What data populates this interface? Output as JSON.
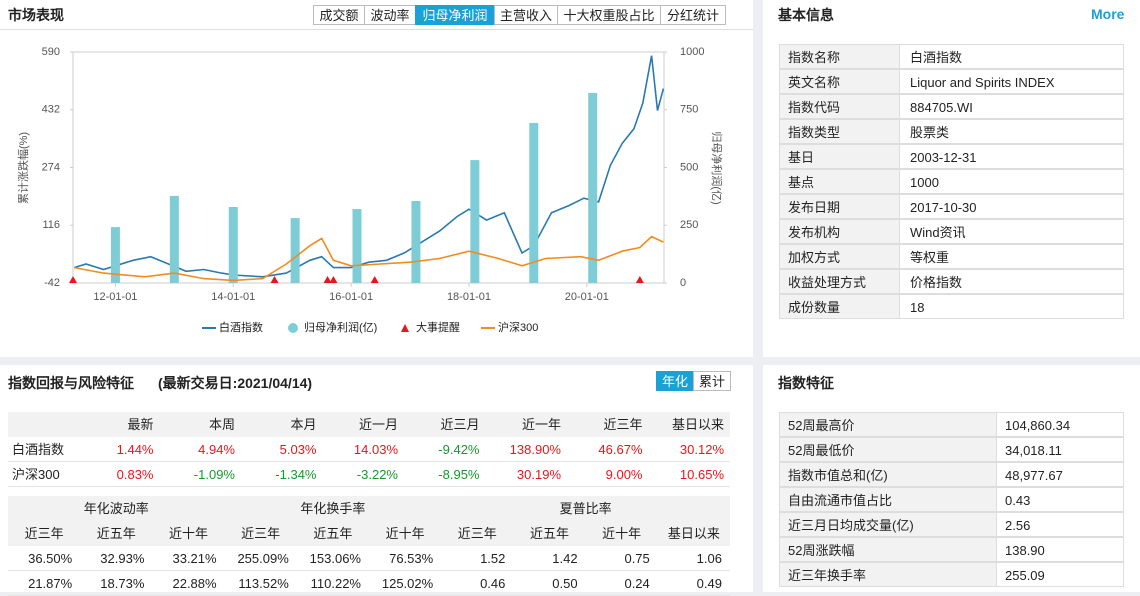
{
  "market": {
    "title": "市场表现",
    "tabs": [
      "成交额",
      "波动率",
      "归母净利润",
      "主营收入",
      "十大权重股占比",
      "分红统计"
    ],
    "active_tab": 2
  },
  "chart_data": {
    "type": "combo",
    "ylabel": "累计涨跌幅(%)",
    "y2label": "归母净利润(亿)",
    "xlim": [
      2011.28,
      2021.31
    ],
    "xticks": [
      {
        "value": 2012,
        "label": "12-01-01"
      },
      {
        "value": 2014,
        "label": "14-01-01"
      },
      {
        "value": 2016,
        "label": "16-01-01"
      },
      {
        "value": 2018,
        "label": "18-01-01"
      },
      {
        "value": 2020,
        "label": "20-01-01"
      }
    ],
    "ylim": [
      -42,
      590
    ],
    "yticks": [
      -42,
      116,
      274,
      432,
      590
    ],
    "y2lim": [
      0,
      1000
    ],
    "y2ticks": [
      0,
      250,
      500,
      750,
      1000
    ],
    "series": [
      {
        "name": "白酒指数",
        "type": "line",
        "color": "#2a7ab0",
        "x": [
          2011.3,
          2011.5,
          2011.8,
          2012.0,
          2012.3,
          2012.6,
          2012.9,
          2013.2,
          2013.5,
          2013.8,
          2014.0,
          2014.5,
          2014.9,
          2015.3,
          2015.5,
          2015.7,
          2016.0,
          2016.3,
          2016.6,
          2016.9,
          2017.2,
          2017.5,
          2017.8,
          2018.0,
          2018.3,
          2018.6,
          2018.9,
          2019.1,
          2019.4,
          2019.7,
          2019.95,
          2020.2,
          2020.4,
          2020.6,
          2020.8,
          2020.95,
          2021.1,
          2021.2,
          2021.3
        ],
        "values": [
          0,
          10,
          -5,
          5,
          20,
          30,
          10,
          -10,
          -5,
          -15,
          -20,
          -25,
          -15,
          20,
          30,
          0,
          0,
          15,
          20,
          40,
          70,
          100,
          140,
          160,
          130,
          150,
          40,
          60,
          150,
          170,
          190,
          180,
          280,
          340,
          380,
          450,
          580,
          430,
          490
        ]
      },
      {
        "name": "归母净利润(亿)",
        "type": "bar",
        "axis": "y2",
        "color": "#7ecdd6",
        "x": [
          2012.0,
          2013.0,
          2014.0,
          2015.05,
          2016.1,
          2017.1,
          2018.1,
          2019.1,
          2020.1
        ],
        "values": [
          242,
          377,
          329,
          281,
          320,
          355,
          532,
          693,
          823
        ]
      },
      {
        "name": "大事提醒",
        "type": "event",
        "color": "#e8161c",
        "x": [
          2011.28,
          2014.7,
          2015.6,
          2015.7,
          2016.4,
          2020.9
        ]
      },
      {
        "name": "沪深300",
        "type": "line",
        "color": "#f28c1e",
        "x": [
          2011.3,
          2011.8,
          2012.5,
          2013.0,
          2013.5,
          2014.0,
          2014.5,
          2014.9,
          2015.3,
          2015.5,
          2015.7,
          2016.0,
          2016.5,
          2017.0,
          2017.5,
          2018.0,
          2018.5,
          2018.9,
          2019.3,
          2019.9,
          2020.2,
          2020.6,
          2020.9,
          2021.1,
          2021.3
        ],
        "values": [
          0,
          -15,
          -25,
          -15,
          -30,
          -35,
          -30,
          10,
          60,
          80,
          20,
          5,
          10,
          15,
          25,
          45,
          25,
          5,
          25,
          30,
          20,
          45,
          55,
          85,
          70
        ]
      }
    ]
  },
  "basic": {
    "title": "基本信息",
    "more": "More",
    "rows": [
      [
        "指数名称",
        "白酒指数"
      ],
      [
        "英文名称",
        "Liquor and Spirits INDEX"
      ],
      [
        "指数代码",
        "884705.WI"
      ],
      [
        "指数类型",
        "股票类"
      ],
      [
        "基日",
        "2003-12-31"
      ],
      [
        "基点",
        "1000"
      ],
      [
        "发布日期",
        "2017-10-30"
      ],
      [
        "发布机构",
        "Wind资讯"
      ],
      [
        "加权方式",
        "等权重"
      ],
      [
        "收益处理方式",
        "价格指数"
      ],
      [
        "成份数量",
        "18"
      ]
    ]
  },
  "returns": {
    "title": "指数回报与风险特征",
    "date": "(最新交易日:2021/04/14)",
    "toggles": [
      "年化",
      "累计"
    ],
    "active_toggle": 0,
    "header": [
      "最新",
      "本周",
      "本月",
      "近一月",
      "近三月",
      "近一年",
      "近三年",
      "基日以来"
    ],
    "rows": [
      [
        "白酒指数",
        "1.44%",
        "4.94%",
        "5.03%",
        "14.03%",
        "-9.42%",
        "138.90%",
        "46.67%",
        "30.12%"
      ],
      [
        "沪深300",
        "0.83%",
        "-1.09%",
        "-1.34%",
        "-3.22%",
        "-8.95%",
        "30.19%",
        "9.00%",
        "10.65%"
      ]
    ],
    "groups": [
      [
        "年化波动率",
        3
      ],
      [
        "年化换手率",
        3
      ],
      [
        "夏普比率",
        4
      ]
    ],
    "subheader": [
      "近三年",
      "近五年",
      "近十年",
      "近三年",
      "近五年",
      "近十年",
      "近三年",
      "近五年",
      "近十年",
      "基日以来"
    ],
    "rows2": [
      [
        "36.50%",
        "32.93%",
        "33.21%",
        "255.09%",
        "153.06%",
        "76.53%",
        "1.52",
        "1.42",
        "0.75",
        "1.06"
      ],
      [
        "21.87%",
        "18.73%",
        "22.88%",
        "113.52%",
        "110.22%",
        "125.02%",
        "0.46",
        "0.50",
        "0.24",
        "0.49"
      ]
    ]
  },
  "features": {
    "title": "指数特征",
    "rows": [
      [
        "52周最高价",
        "104,860.34"
      ],
      [
        "52周最低价",
        "34,018.11"
      ],
      [
        "指数市值总和(亿)",
        "48,977.67"
      ],
      [
        "自由流通市值占比",
        "0.43"
      ],
      [
        "近三月日均成交量(亿)",
        "2.56"
      ],
      [
        "52周涨跌幅",
        "138.90"
      ],
      [
        "近三年换手率",
        "255.09"
      ]
    ]
  }
}
